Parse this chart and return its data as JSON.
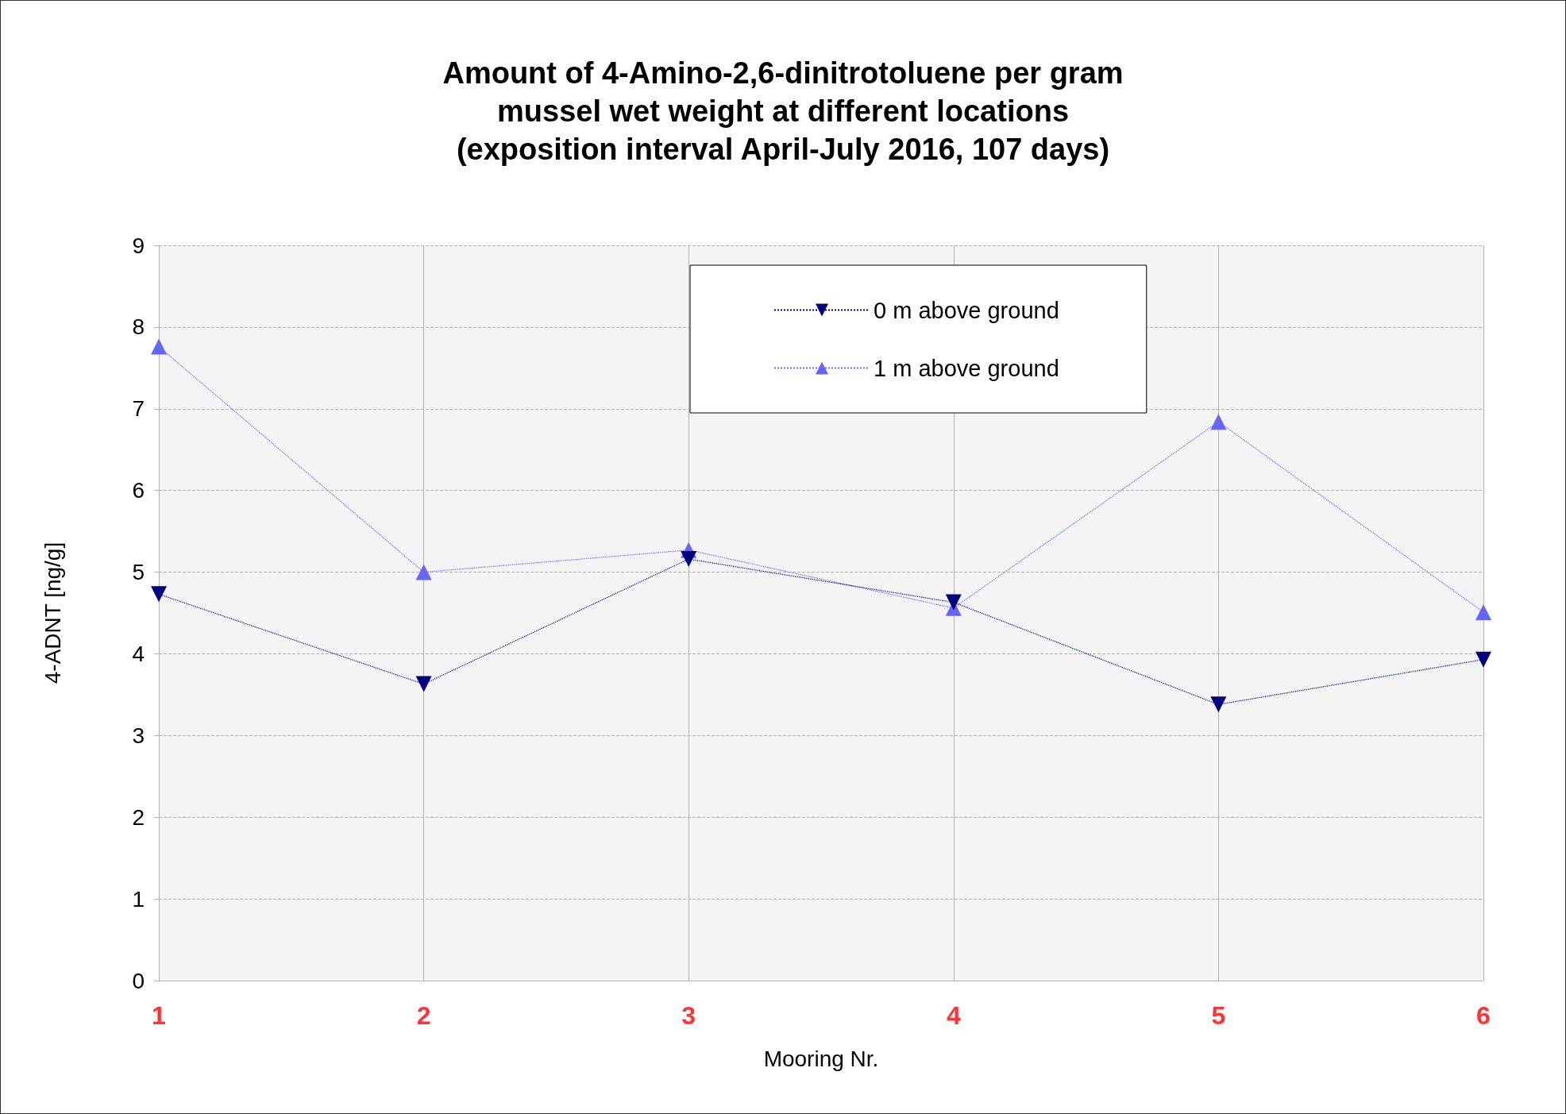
{
  "chart_data": {
    "type": "line",
    "title": "Amount of 4-Amino-2,6-dinitrotoluene per gram\nmussel wet weight at different locations\n(exposition interval April-July 2016, 107 days)",
    "xlabel": "Mooring Nr.",
    "ylabel": "4-ADNT [ng/g]",
    "categories": [
      "1",
      "2",
      "3",
      "4",
      "5",
      "6"
    ],
    "series": [
      {
        "name": "0 m above ground",
        "color": "#000080",
        "values": [
          4.73,
          3.63,
          5.16,
          4.63,
          3.38,
          3.93
        ]
      },
      {
        "name": "1 m above ground",
        "color": "#6666ff",
        "values": [
          7.76,
          5.0,
          5.27,
          4.56,
          6.84,
          4.51
        ]
      }
    ],
    "ylim": [
      0,
      9
    ],
    "yticks": [
      0,
      1,
      2,
      3,
      4,
      5,
      6,
      7,
      8,
      9
    ],
    "grid": true,
    "legend": "top right",
    "marker": "triangle",
    "line_style": "dotted"
  }
}
